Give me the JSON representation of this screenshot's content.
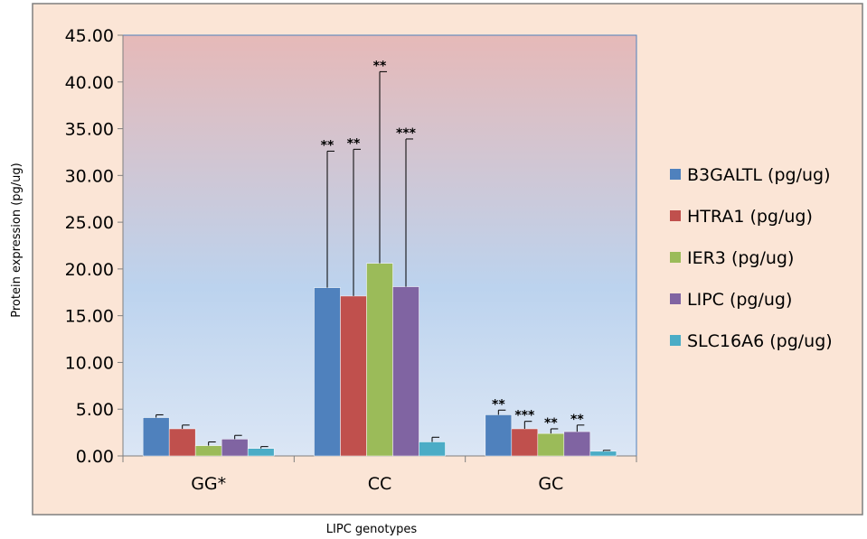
{
  "chart_data": {
    "type": "bar",
    "title": "",
    "xlabel": "LIPC genotypes",
    "ylabel": "Protein expression (pg/ug)",
    "ylim": [
      0,
      45
    ],
    "yticks": [
      "0.00",
      "5.00",
      "10.00",
      "15.00",
      "20.00",
      "25.00",
      "30.00",
      "35.00",
      "40.00",
      "45.00"
    ],
    "categories": [
      "GG*",
      "CC",
      "GC"
    ],
    "legend_position": "right",
    "series": [
      {
        "name": "B3GALTL (pg/ug)",
        "color": "#4F81BD",
        "values": [
          4.1,
          18.0,
          4.4
        ],
        "errors": [
          0.3,
          14.6,
          0.5
        ],
        "significance": [
          "",
          "**",
          "**"
        ]
      },
      {
        "name": "HTRA1 (pg/ug)",
        "color": "#C0504D",
        "values": [
          2.9,
          17.1,
          2.9
        ],
        "errors": [
          0.4,
          15.7,
          0.8
        ],
        "significance": [
          "",
          "**",
          "***"
        ]
      },
      {
        "name": "IER3 (pg/ug)",
        "color": "#9BBB59",
        "values": [
          1.1,
          20.6,
          2.4
        ],
        "errors": [
          0.4,
          20.5,
          0.5
        ],
        "significance": [
          "",
          "**",
          "**"
        ]
      },
      {
        "name": "LIPC (pg/ug)",
        "color": "#8064A2",
        "values": [
          1.8,
          18.1,
          2.6
        ],
        "errors": [
          0.4,
          15.8,
          0.7
        ],
        "significance": [
          "",
          "***",
          "**"
        ]
      },
      {
        "name": "SLC16A6 (pg/ug)",
        "color": "#4BACC6",
        "values": [
          0.8,
          1.5,
          0.5
        ],
        "errors": [
          0.2,
          0.5,
          0.1
        ],
        "significance": [
          "",
          "",
          ""
        ]
      }
    ]
  }
}
